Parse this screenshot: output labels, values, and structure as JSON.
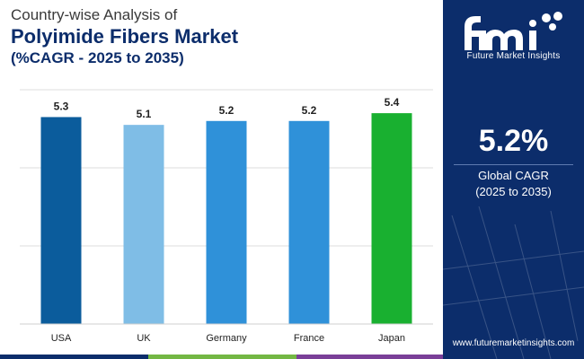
{
  "header": {
    "line1": "Country-wise Analysis of",
    "line2": "Polyimide Fibers Market",
    "line3": "(%CAGR - 2025 to 2035)"
  },
  "chart_data": {
    "type": "bar",
    "categories": [
      "USA",
      "UK",
      "Germany",
      "France",
      "Japan"
    ],
    "values": [
      5.3,
      5.1,
      5.2,
      5.2,
      5.4
    ],
    "colors": [
      "#0b5c9c",
      "#7fbde6",
      "#2f91d9",
      "#2f91d9",
      "#19b030"
    ],
    "ylim": [
      0,
      6
    ],
    "grid": true,
    "title": "Country-wise Analysis of Polyimide Fibers Market (%CAGR - 2025 to 2035)",
    "xlabel": "",
    "ylabel": ""
  },
  "side_panel": {
    "brand_logo": "fmi",
    "brand_name": "Future Market Insights",
    "kpi_value": "5.2%",
    "kpi_label": "Global CAGR",
    "kpi_period": "(2025 to 2035)",
    "website": "www.futuremarketinsights.com"
  },
  "theme": {
    "navy": "#0c2d6b",
    "band_colors": [
      "#0c2d6b",
      "#73b744",
      "#7a3f98"
    ]
  }
}
